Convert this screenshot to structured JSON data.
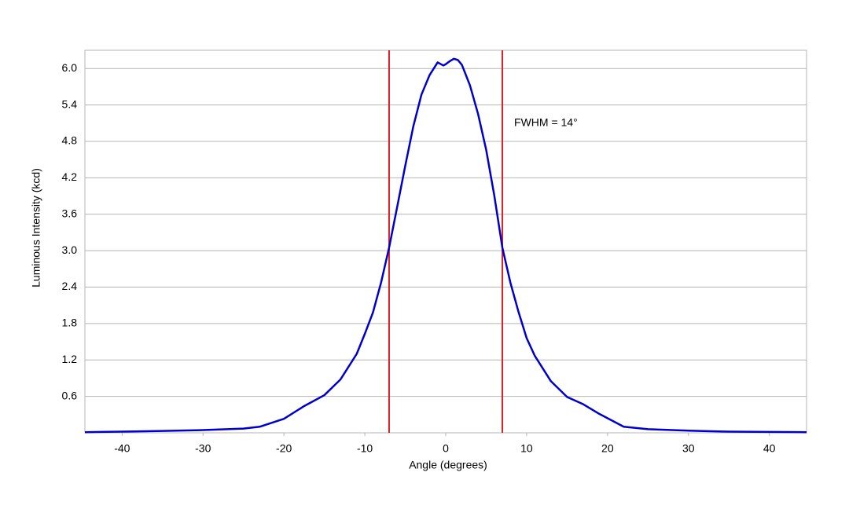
{
  "chart_data": {
    "type": "line",
    "x_label": "Angle (degrees)",
    "y_label": "Luminous Intensity (kcd)",
    "annotation": "FWHM = 14°",
    "x": [
      -44.6,
      -40,
      -35,
      -30,
      -25,
      -23,
      -20,
      -17.5,
      -15,
      -13,
      -11,
      -10,
      -9,
      -8,
      -7,
      -6,
      -5,
      -4,
      -3,
      -2,
      -1,
      -0.3,
      0,
      0.5,
      1,
      1.5,
      2,
      3,
      4,
      5,
      6,
      7,
      8,
      9,
      10,
      11,
      13,
      15,
      17,
      19,
      22,
      25,
      30,
      35,
      40,
      44.6
    ],
    "values": [
      0.01,
      0.02,
      0.03,
      0.045,
      0.07,
      0.1,
      0.23,
      0.44,
      0.62,
      0.88,
      1.3,
      1.63,
      1.98,
      2.47,
      3.05,
      3.72,
      4.4,
      5.05,
      5.57,
      5.89,
      6.1,
      6.05,
      6.07,
      6.12,
      6.16,
      6.14,
      6.06,
      5.72,
      5.25,
      4.66,
      3.91,
      3.05,
      2.47,
      1.99,
      1.56,
      1.27,
      0.85,
      0.59,
      0.47,
      0.31,
      0.1,
      0.06,
      0.035,
      0.02,
      0.015,
      0.01
    ],
    "color": "#0000cc",
    "vlines": [
      -7,
      7
    ],
    "vline_color": "#e02020",
    "xlim": [
      -44.6,
      44.6
    ],
    "ylim": [
      0,
      6.3
    ],
    "xticks": [
      -40,
      -30,
      -20,
      -10,
      0,
      10,
      20,
      30,
      40
    ],
    "yticks": [
      0.6,
      1.2,
      1.8,
      2.4,
      {
        "value": 3,
        "label": "3.0"
      },
      3.6,
      4.2,
      4.8,
      5.4,
      {
        "value": 6,
        "label": "6.0"
      }
    ],
    "grid": true
  }
}
